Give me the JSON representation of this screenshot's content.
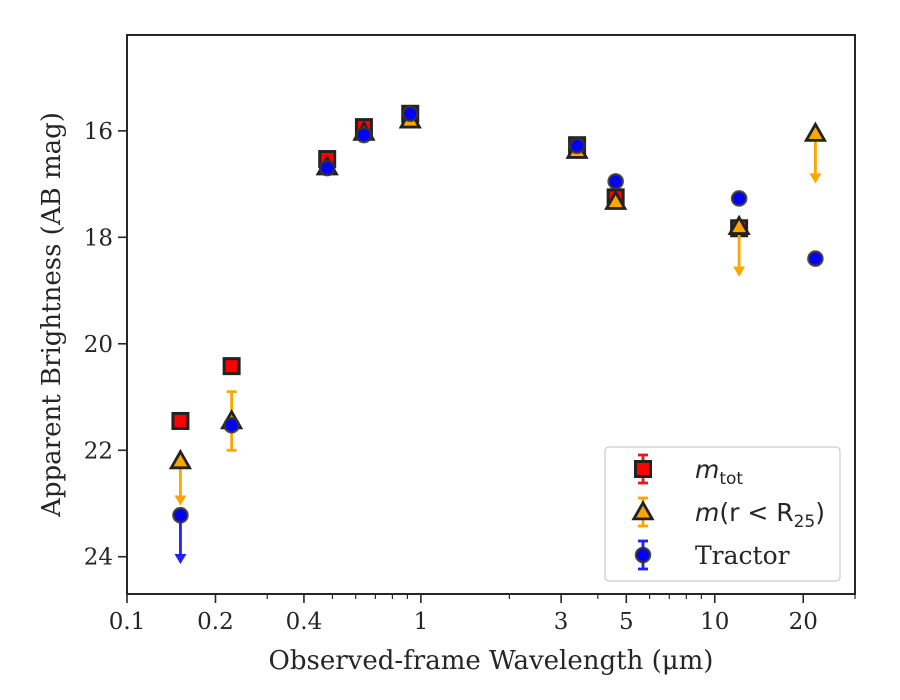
{
  "chart_data": {
    "type": "scatter",
    "xlabel": "Observed-frame Wavelength (μm)",
    "ylabel": "Apparent Brightness (AB mag)",
    "xscale": "log",
    "xlim": [
      0.1,
      30
    ],
    "ylim": [
      24.7,
      14.2
    ],
    "y_inverted": true,
    "x_ticks": [
      {
        "value": 0.1,
        "label": "0.1"
      },
      {
        "value": 0.2,
        "label": "0.2"
      },
      {
        "value": 0.4,
        "label": "0.4"
      },
      {
        "value": 1,
        "label": "1"
      },
      {
        "value": 3,
        "label": "3"
      },
      {
        "value": 5,
        "label": "5"
      },
      {
        "value": 10,
        "label": "10"
      },
      {
        "value": 20,
        "label": "20"
      }
    ],
    "y_ticks": [
      {
        "value": 16,
        "label": "16"
      },
      {
        "value": 18,
        "label": "18"
      },
      {
        "value": 20,
        "label": "20"
      },
      {
        "value": 22,
        "label": "22"
      },
      {
        "value": 24,
        "label": "24"
      }
    ],
    "grid": false,
    "legend_position": "lower-right",
    "series": [
      {
        "key": "mtot",
        "legend_main": "m",
        "legend_sub": "tot",
        "legend_tail": "",
        "marker": "square",
        "fill": "#ff0000",
        "edge": "#222222",
        "errcolor": "#e41a1c",
        "points": [
          {
            "x": 0.152,
            "y": 21.45
          },
          {
            "x": 0.227,
            "y": 20.42
          },
          {
            "x": 0.48,
            "y": 16.53
          },
          {
            "x": 0.64,
            "y": 15.93
          },
          {
            "x": 0.92,
            "y": 15.68
          },
          {
            "x": 3.4,
            "y": 16.27
          },
          {
            "x": 4.6,
            "y": 17.25
          },
          {
            "x": 12.1,
            "y": 17.83
          }
        ]
      },
      {
        "key": "mr25",
        "legend_main": "m",
        "legend_sub": "25",
        "legend_tail": "(r < R",
        "marker": "triangle",
        "fill": "#ffa500",
        "edge": "#222222",
        "errcolor": "#ffa500",
        "points": [
          {
            "x": 0.152,
            "y": 22.2,
            "upper_limit": true,
            "limit_to": 23.0
          },
          {
            "x": 0.227,
            "y": 21.45,
            "err": 0.55
          },
          {
            "x": 0.48,
            "y": 16.68
          },
          {
            "x": 0.64,
            "y": 16.03
          },
          {
            "x": 0.92,
            "y": 15.8
          },
          {
            "x": 3.4,
            "y": 16.37
          },
          {
            "x": 4.6,
            "y": 17.33
          },
          {
            "x": 12.1,
            "y": 17.8,
            "upper_limit": true,
            "limit_to": 18.7
          },
          {
            "x": 22.0,
            "y": 16.05,
            "upper_limit": true,
            "limit_to": 16.95
          }
        ]
      },
      {
        "key": "tractor",
        "legend_main": "Tractor",
        "legend_sub": "",
        "legend_tail": "",
        "marker": "circle",
        "fill": "#0000ff",
        "edge": "#333333",
        "errcolor": "#1f1fff",
        "points": [
          {
            "x": 0.152,
            "y": 23.22,
            "upper_limit": true,
            "limit_to": 24.1
          },
          {
            "x": 0.227,
            "y": 21.53
          },
          {
            "x": 0.48,
            "y": 16.7
          },
          {
            "x": 0.64,
            "y": 16.08
          },
          {
            "x": 0.92,
            "y": 15.68
          },
          {
            "x": 3.4,
            "y": 16.28
          },
          {
            "x": 4.6,
            "y": 16.95
          },
          {
            "x": 12.1,
            "y": 17.27
          },
          {
            "x": 22.0,
            "y": 18.4
          }
        ]
      }
    ]
  }
}
